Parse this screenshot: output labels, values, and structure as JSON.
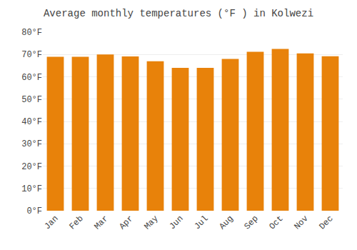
{
  "chart_data": {
    "type": "bar",
    "title": "Average monthly temperatures (°F ) in Kolwezi",
    "categories": [
      "Jan",
      "Feb",
      "Mar",
      "Apr",
      "May",
      "Jun",
      "Jul",
      "Aug",
      "Sep",
      "Oct",
      "Nov",
      "Dec"
    ],
    "values": [
      69.0,
      69.0,
      70.0,
      69.1,
      67.0,
      64.0,
      64.0,
      68.0,
      71.2,
      72.5,
      70.5,
      69.2
    ],
    "color": "#E8820A",
    "ylim": [
      0,
      80
    ],
    "yticks": [
      {
        "value": 0,
        "label": "0°F"
      },
      {
        "value": 10,
        "label": "10°F"
      },
      {
        "value": 20,
        "label": "20°F"
      },
      {
        "value": 30,
        "label": "30°F"
      },
      {
        "value": 40,
        "label": "40°F"
      },
      {
        "value": 50,
        "label": "50°F"
      },
      {
        "value": 60,
        "label": "60°F"
      },
      {
        "value": 70,
        "label": "70°F"
      },
      {
        "value": 80,
        "label": "80°F"
      }
    ],
    "grid": true
  }
}
